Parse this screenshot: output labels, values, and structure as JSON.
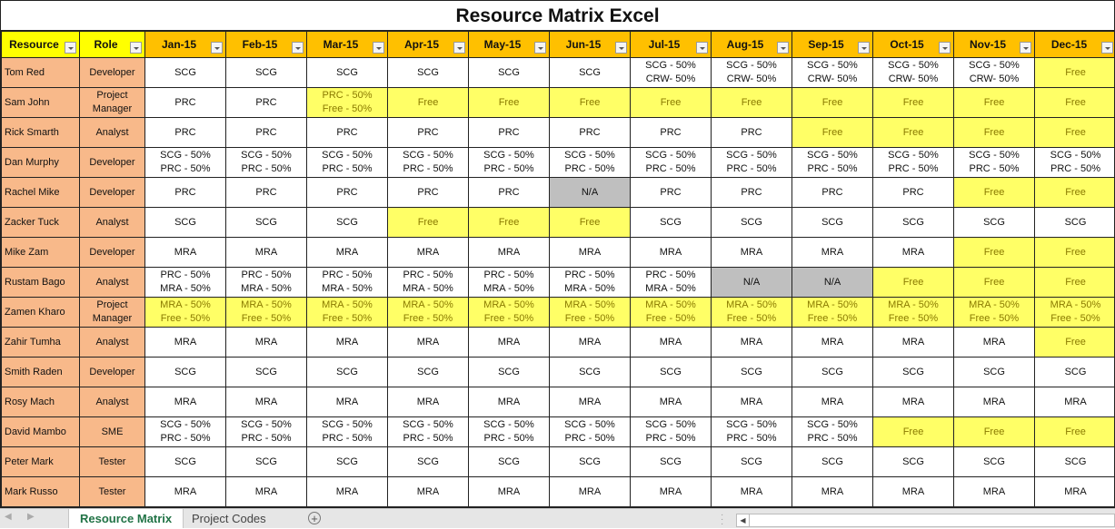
{
  "title": "Resource Matrix Excel",
  "columns": {
    "resource": "Resource",
    "role": "Role",
    "months": [
      "Jan-15",
      "Feb-15",
      "Mar-15",
      "Apr-15",
      "May-15",
      "Jun-15",
      "Jul-15",
      "Aug-15",
      "Sep-15",
      "Oct-15",
      "Nov-15",
      "Dec-15"
    ]
  },
  "rows": [
    {
      "name": "Tom Red",
      "role": "Developer",
      "cells": [
        [
          "SCG"
        ],
        [
          "SCG"
        ],
        [
          "SCG"
        ],
        [
          "SCG"
        ],
        [
          "SCG"
        ],
        [
          "SCG"
        ],
        [
          "SCG - 50%",
          "CRW- 50%"
        ],
        [
          "SCG - 50%",
          "CRW- 50%"
        ],
        [
          "SCG - 50%",
          "CRW- 50%"
        ],
        [
          "SCG - 50%",
          "CRW- 50%"
        ],
        [
          "SCG - 50%",
          "CRW- 50%"
        ],
        [
          "Free"
        ]
      ]
    },
    {
      "name": "Sam John",
      "role": "Project Manager",
      "cells": [
        [
          "PRC"
        ],
        [
          "PRC"
        ],
        [
          "PRC - 50%",
          "Free - 50%"
        ],
        [
          "Free"
        ],
        [
          "Free"
        ],
        [
          "Free"
        ],
        [
          "Free"
        ],
        [
          "Free"
        ],
        [
          "Free"
        ],
        [
          "Free"
        ],
        [
          "Free"
        ],
        [
          "Free"
        ]
      ]
    },
    {
      "name": "Rick Smarth",
      "role": "Analyst",
      "cells": [
        [
          "PRC"
        ],
        [
          "PRC"
        ],
        [
          "PRC"
        ],
        [
          "PRC"
        ],
        [
          "PRC"
        ],
        [
          "PRC"
        ],
        [
          "PRC"
        ],
        [
          "PRC"
        ],
        [
          "Free"
        ],
        [
          "Free"
        ],
        [
          "Free"
        ],
        [
          "Free"
        ]
      ]
    },
    {
      "name": "Dan Murphy",
      "role": "Developer",
      "cells": [
        [
          "SCG - 50%",
          "PRC - 50%"
        ],
        [
          "SCG - 50%",
          "PRC - 50%"
        ],
        [
          "SCG - 50%",
          "PRC - 50%"
        ],
        [
          "SCG - 50%",
          "PRC - 50%"
        ],
        [
          "SCG - 50%",
          "PRC - 50%"
        ],
        [
          "SCG - 50%",
          "PRC - 50%"
        ],
        [
          "SCG - 50%",
          "PRC - 50%"
        ],
        [
          "SCG - 50%",
          "PRC - 50%"
        ],
        [
          "SCG - 50%",
          "PRC - 50%"
        ],
        [
          "SCG - 50%",
          "PRC - 50%"
        ],
        [
          "SCG - 50%",
          "PRC - 50%"
        ],
        [
          "SCG - 50%",
          "PRC - 50%"
        ]
      ]
    },
    {
      "name": "Rachel Mike",
      "role": "Developer",
      "cells": [
        [
          "PRC"
        ],
        [
          "PRC"
        ],
        [
          "PRC"
        ],
        [
          "PRC"
        ],
        [
          "PRC"
        ],
        [
          "N/A"
        ],
        [
          "PRC"
        ],
        [
          "PRC"
        ],
        [
          "PRC"
        ],
        [
          "PRC"
        ],
        [
          "Free"
        ],
        [
          "Free"
        ]
      ]
    },
    {
      "name": "Zacker Tuck",
      "role": "Analyst",
      "cells": [
        [
          "SCG"
        ],
        [
          "SCG"
        ],
        [
          "SCG"
        ],
        [
          "Free"
        ],
        [
          "Free"
        ],
        [
          "Free"
        ],
        [
          "SCG"
        ],
        [
          "SCG"
        ],
        [
          "SCG"
        ],
        [
          "SCG"
        ],
        [
          "SCG"
        ],
        [
          "SCG"
        ]
      ]
    },
    {
      "name": "Mike Zam",
      "role": "Developer",
      "cells": [
        [
          "MRA"
        ],
        [
          "MRA"
        ],
        [
          "MRA"
        ],
        [
          "MRA"
        ],
        [
          "MRA"
        ],
        [
          "MRA"
        ],
        [
          "MRA"
        ],
        [
          "MRA"
        ],
        [
          "MRA"
        ],
        [
          "MRA"
        ],
        [
          "Free"
        ],
        [
          "Free"
        ]
      ]
    },
    {
      "name": "Rustam Bago",
      "role": "Analyst",
      "cells": [
        [
          "PRC - 50%",
          "MRA - 50%"
        ],
        [
          "PRC - 50%",
          "MRA - 50%"
        ],
        [
          "PRC - 50%",
          "MRA - 50%"
        ],
        [
          "PRC - 50%",
          "MRA - 50%"
        ],
        [
          "PRC - 50%",
          "MRA - 50%"
        ],
        [
          "PRC - 50%",
          "MRA - 50%"
        ],
        [
          "PRC - 50%",
          "MRA - 50%"
        ],
        [
          "N/A"
        ],
        [
          "N/A"
        ],
        [
          "Free"
        ],
        [
          "Free"
        ],
        [
          "Free"
        ]
      ]
    },
    {
      "name": "Zamen Kharo",
      "role": "Project Manager",
      "cells": [
        [
          "MRA - 50%",
          "Free - 50%"
        ],
        [
          "MRA - 50%",
          "Free - 50%"
        ],
        [
          "MRA - 50%",
          "Free - 50%"
        ],
        [
          "MRA - 50%",
          "Free - 50%"
        ],
        [
          "MRA - 50%",
          "Free - 50%"
        ],
        [
          "MRA - 50%",
          "Free - 50%"
        ],
        [
          "MRA - 50%",
          "Free - 50%"
        ],
        [
          "MRA - 50%",
          "Free - 50%"
        ],
        [
          "MRA - 50%",
          "Free - 50%"
        ],
        [
          "MRA - 50%",
          "Free - 50%"
        ],
        [
          "MRA - 50%",
          "Free - 50%"
        ],
        [
          "MRA - 50%",
          "Free - 50%"
        ]
      ]
    },
    {
      "name": "Zahir Tumha",
      "role": "Analyst",
      "cells": [
        [
          "MRA"
        ],
        [
          "MRA"
        ],
        [
          "MRA"
        ],
        [
          "MRA"
        ],
        [
          "MRA"
        ],
        [
          "MRA"
        ],
        [
          "MRA"
        ],
        [
          "MRA"
        ],
        [
          "MRA"
        ],
        [
          "MRA"
        ],
        [
          "MRA"
        ],
        [
          "Free"
        ]
      ]
    },
    {
      "name": "Smith Raden",
      "role": "Developer",
      "cells": [
        [
          "SCG"
        ],
        [
          "SCG"
        ],
        [
          "SCG"
        ],
        [
          "SCG"
        ],
        [
          "SCG"
        ],
        [
          "SCG"
        ],
        [
          "SCG"
        ],
        [
          "SCG"
        ],
        [
          "SCG"
        ],
        [
          "SCG"
        ],
        [
          "SCG"
        ],
        [
          "SCG"
        ]
      ]
    },
    {
      "name": "Rosy Mach",
      "role": "Analyst",
      "cells": [
        [
          "MRA"
        ],
        [
          "MRA"
        ],
        [
          "MRA"
        ],
        [
          "MRA"
        ],
        [
          "MRA"
        ],
        [
          "MRA"
        ],
        [
          "MRA"
        ],
        [
          "MRA"
        ],
        [
          "MRA"
        ],
        [
          "MRA"
        ],
        [
          "MRA"
        ],
        [
          "MRA"
        ]
      ]
    },
    {
      "name": "David Mambo",
      "role": "SME",
      "cells": [
        [
          "SCG - 50%",
          "PRC - 50%"
        ],
        [
          "SCG - 50%",
          "PRC - 50%"
        ],
        [
          "SCG - 50%",
          "PRC - 50%"
        ],
        [
          "SCG - 50%",
          "PRC - 50%"
        ],
        [
          "SCG - 50%",
          "PRC - 50%"
        ],
        [
          "SCG - 50%",
          "PRC - 50%"
        ],
        [
          "SCG - 50%",
          "PRC - 50%"
        ],
        [
          "SCG - 50%",
          "PRC - 50%"
        ],
        [
          "SCG - 50%",
          "PRC - 50%"
        ],
        [
          "Free"
        ],
        [
          "Free"
        ],
        [
          "Free"
        ]
      ]
    },
    {
      "name": "Peter Mark",
      "role": "Tester",
      "cells": [
        [
          "SCG"
        ],
        [
          "SCG"
        ],
        [
          "SCG"
        ],
        [
          "SCG"
        ],
        [
          "SCG"
        ],
        [
          "SCG"
        ],
        [
          "SCG"
        ],
        [
          "SCG"
        ],
        [
          "SCG"
        ],
        [
          "SCG"
        ],
        [
          "SCG"
        ],
        [
          "SCG"
        ]
      ]
    },
    {
      "name": "Mark Russo",
      "role": "Tester",
      "cells": [
        [
          "MRA"
        ],
        [
          "MRA"
        ],
        [
          "MRA"
        ],
        [
          "MRA"
        ],
        [
          "MRA"
        ],
        [
          "MRA"
        ],
        [
          "MRA"
        ],
        [
          "MRA"
        ],
        [
          "MRA"
        ],
        [
          "MRA"
        ],
        [
          "MRA"
        ],
        [
          "MRA"
        ]
      ]
    }
  ],
  "colors": {
    "header_month": "#ffc000",
    "header_key": "#ffff00",
    "name_fill": "#f8b98a",
    "free_fill": "#ffff66",
    "free_text": "#8a7a00",
    "na_fill": "#bfbfbf",
    "active_tab_text": "#217346"
  },
  "sheet_tabs": [
    {
      "label": "Resource Matrix",
      "active": true
    },
    {
      "label": "Project Codes",
      "active": false
    }
  ],
  "icons": {
    "add_sheet": "+",
    "nav_prev": "◀",
    "nav_next": "▶",
    "scroll_left": "◀"
  }
}
